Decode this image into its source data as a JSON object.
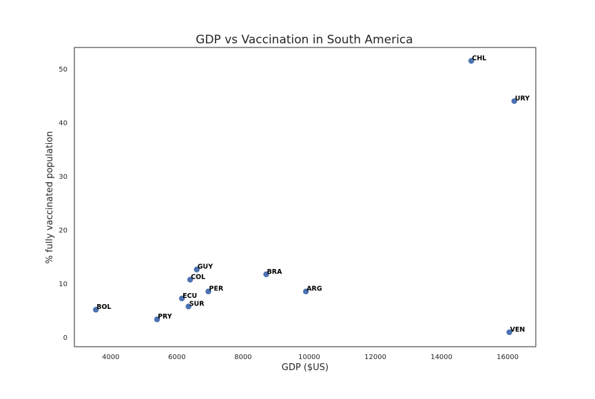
{
  "chart_data": {
    "type": "scatter",
    "title": "GDP vs Vaccination in South America",
    "xlabel": "GDP ($US)",
    "ylabel": "% fully vaccinated population",
    "xlim": [
      2900,
      16850
    ],
    "ylim": [
      -1.8,
      54
    ],
    "xticks": [
      4000,
      6000,
      8000,
      10000,
      12000,
      14000,
      16000
    ],
    "yticks": [
      0,
      10,
      20,
      30,
      40,
      50
    ],
    "grid": false,
    "marker_color": "#4c72b0",
    "points": [
      {
        "label": "CHL",
        "x": 14900,
        "y": 51.5
      },
      {
        "label": "URY",
        "x": 16200,
        "y": 44.0
      },
      {
        "label": "GUY",
        "x": 6600,
        "y": 12.6
      },
      {
        "label": "BRA",
        "x": 8700,
        "y": 11.7
      },
      {
        "label": "COL",
        "x": 6400,
        "y": 10.7
      },
      {
        "label": "PER",
        "x": 6950,
        "y": 8.5
      },
      {
        "label": "ARG",
        "x": 9900,
        "y": 8.5
      },
      {
        "label": "ECU",
        "x": 6150,
        "y": 7.2
      },
      {
        "label": "SUR",
        "x": 6350,
        "y": 5.7
      },
      {
        "label": "BOL",
        "x": 3550,
        "y": 5.1
      },
      {
        "label": "PRY",
        "x": 5400,
        "y": 3.3
      },
      {
        "label": "VEN",
        "x": 16050,
        "y": 0.9
      }
    ]
  }
}
